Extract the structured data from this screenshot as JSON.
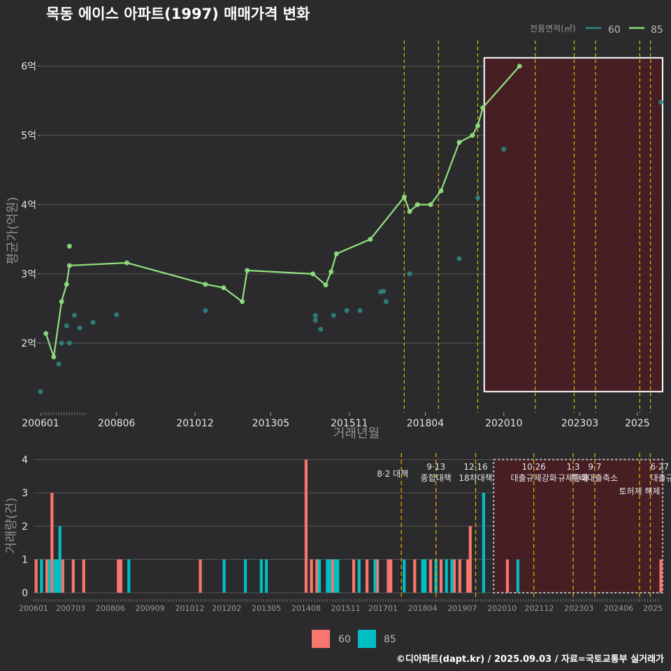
{
  "title": "목동 에이스 아파트(1997) 매매가격 변화",
  "credit": "©디아파트(dapt.kr) / 2025.09.03 / 자료=국토교통부 실거래가",
  "colors": {
    "bg": "#2b2b2d",
    "grid": "#555555",
    "series60": "#2e8a87",
    "series85": "#90e07e",
    "vol60": "#f8766d",
    "vol85": "#00bfc4",
    "policy_line": "#d4c200",
    "policy_line_bottom": "#e0a800",
    "highlight_fill": "#4a1d22",
    "highlight_border": "#ffffff"
  },
  "chart_data": [
    {
      "type": "line",
      "name": "price",
      "ylabel": "평균가(억원)",
      "xlabel": "거래년월",
      "y_ticks": [
        2,
        3,
        4,
        5,
        6
      ],
      "y_tick_labels": [
        "2억",
        "3억",
        "4억",
        "5억",
        "6억"
      ],
      "ylim": [
        1.0,
        6.4
      ],
      "xlim": [
        2006.0,
        2025.85
      ],
      "x_tick_labels": [
        "200601",
        "200806",
        "201012",
        "201305",
        "201511",
        "201804",
        "202010",
        "202303",
        "2025"
      ],
      "x_tick_positions": [
        2006.0,
        2008.42,
        2010.92,
        2013.33,
        2015.83,
        2018.25,
        2020.75,
        2023.17,
        2025.0
      ],
      "legend": {
        "title": "전용면적(㎡)",
        "position": "top-right",
        "entries": [
          "60",
          "85"
        ]
      },
      "policy_lines": [
        2017.58,
        2018.67,
        2019.92,
        2021.75,
        2022.99,
        2023.67,
        2025.08,
        2025.42
      ],
      "highlight_range": [
        2020.75,
        2025.85
      ],
      "highlight_y": [
        1.3,
        6.12
      ],
      "series": [
        {
          "name": "85",
          "line_x": [
            2006.17,
            2006.42,
            2006.67,
            2006.83,
            2006.92,
            2008.75,
            2011.25,
            2011.83,
            2012.42,
            2012.58,
            2014.67,
            2015.08,
            2015.25,
            2015.42,
            2016.5,
            2017.58,
            2017.75,
            2018.0,
            2018.42,
            2018.75,
            2019.33,
            2019.75,
            2019.92,
            2020.08,
            2021.25
          ],
          "line_y": [
            2.14,
            1.8,
            2.6,
            2.85,
            3.12,
            3.16,
            2.85,
            2.8,
            2.6,
            3.05,
            3.0,
            2.84,
            3.03,
            3.29,
            3.5,
            4.11,
            3.9,
            4.0,
            4.0,
            4.2,
            4.9,
            5.0,
            5.14,
            5.4,
            6.0
          ],
          "points_x": [
            2006.17,
            2006.42,
            2006.67,
            2006.83,
            2006.92,
            2006.92,
            2008.75,
            2011.25,
            2011.83,
            2012.42,
            2012.58,
            2014.67,
            2015.08,
            2015.25,
            2015.42,
            2016.5,
            2017.58,
            2017.75,
            2018.0,
            2018.42,
            2018.75,
            2019.33,
            2019.75,
            2019.92,
            2020.08,
            2021.25
          ],
          "points_y": [
            2.14,
            1.8,
            2.6,
            2.85,
            3.12,
            3.4,
            3.16,
            2.85,
            2.8,
            2.6,
            3.05,
            3.0,
            2.84,
            3.03,
            3.29,
            3.5,
            4.11,
            3.9,
            4.0,
            4.0,
            4.2,
            4.9,
            5.0,
            5.14,
            5.4,
            6.0
          ]
        },
        {
          "name": "60",
          "points_x": [
            2006.0,
            2006.58,
            2006.67,
            2006.83,
            2006.92,
            2007.08,
            2007.25,
            2007.67,
            2008.42,
            2011.25,
            2014.75,
            2014.75,
            2014.92,
            2015.33,
            2015.75,
            2016.17,
            2016.83,
            2016.92,
            2017.0,
            2017.75,
            2019.33,
            2019.92,
            2020.75,
            2025.75
          ],
          "points_y": [
            1.3,
            1.7,
            2.0,
            2.25,
            2.0,
            2.4,
            2.22,
            2.3,
            2.41,
            2.47,
            2.4,
            2.33,
            2.2,
            2.4,
            2.47,
            2.47,
            2.74,
            2.75,
            2.6,
            3.0,
            3.22,
            4.1,
            4.8,
            5.48
          ]
        }
      ]
    },
    {
      "type": "bar",
      "name": "volume",
      "ylabel": "거래량(건)",
      "y_ticks": [
        0,
        1,
        2,
        3,
        4
      ],
      "ylim": [
        0,
        4.2
      ],
      "xlim": [
        2006.0,
        2025.85
      ],
      "x_tick_labels": [
        "200601",
        "200703",
        "200806",
        "200909",
        "201012",
        "201202",
        "201305",
        "201408",
        "201511",
        "201701",
        "201804",
        "201907",
        "202010",
        "202112",
        "202303",
        "202406",
        "2025"
      ],
      "x_tick_positions": [
        2006.0,
        2007.17,
        2008.42,
        2009.67,
        2010.92,
        2012.08,
        2013.33,
        2014.58,
        2015.83,
        2017.0,
        2018.25,
        2019.5,
        2020.75,
        2021.92,
        2023.17,
        2024.42,
        2025.5
      ],
      "legend": {
        "position": "bottom",
        "entries": [
          "60",
          "85"
        ]
      },
      "policy_lines": [
        2017.58,
        2018.67,
        2019.92,
        2021.75,
        2022.99,
        2023.67,
        2025.08,
        2025.42
      ],
      "policy_labels": [
        {
          "x": 2017.58,
          "lines": [
            "8·2 대책"
          ],
          "align": "end"
        },
        {
          "x": 2018.67,
          "lines": [
            "9·13",
            "종합대책"
          ],
          "align": "middle"
        },
        {
          "x": 2019.92,
          "lines": [
            "12·16",
            "18차대책"
          ],
          "align": "middle"
        },
        {
          "x": 2021.75,
          "lines": [
            "10·26",
            "대출규제강화"
          ],
          "align": "middle"
        },
        {
          "x": 2022.99,
          "lines": [
            "1·3",
            "규제완화"
          ],
          "align": "middle"
        },
        {
          "x": 2023.67,
          "lines": [
            "9·7",
            "특례대출축소"
          ],
          "align": "middle"
        },
        {
          "x": 2025.08,
          "lines": [
            "토허제 해제"
          ],
          "align": "middle"
        },
        {
          "x": 2025.42,
          "lines": [
            "6·27",
            "대출규"
          ],
          "align": "start"
        }
      ],
      "highlight_range": [
        2020.75,
        2025.85
      ],
      "series": [
        {
          "name": "60",
          "x": [
            2006.08,
            2006.42,
            2006.58,
            2006.92,
            2007.25,
            2007.58,
            2008.67,
            2008.75,
            2011.25,
            2014.58,
            2014.75,
            2014.92,
            2015.42,
            2016.08,
            2016.5,
            2016.83,
            2017.17,
            2017.25,
            2018.0,
            2018.5,
            2018.83,
            2019.25,
            2019.42,
            2019.67,
            2019.75,
            2020.92,
            2025.75
          ],
          "values": [
            1,
            1,
            3,
            1,
            1,
            1,
            1,
            1,
            1,
            4,
            1,
            1,
            1,
            1,
            1,
            1,
            1,
            1,
            1,
            1,
            1,
            1,
            1,
            1,
            2,
            1,
            1
          ]
        },
        {
          "name": "85",
          "x": [
            2006.25,
            2006.5,
            2006.67,
            2006.75,
            2006.83,
            2009.0,
            2012.0,
            2012.67,
            2013.17,
            2013.33,
            2015.0,
            2015.25,
            2015.33,
            2015.5,
            2015.58,
            2016.25,
            2016.75,
            2017.67,
            2018.25,
            2018.33,
            2018.67,
            2019.0,
            2019.17,
            2020.17,
            2021.25
          ],
          "values": [
            1,
            1,
            1,
            1,
            2,
            1,
            1,
            1,
            1,
            1,
            1,
            1,
            1,
            1,
            1,
            1,
            1,
            1,
            1,
            1,
            1,
            1,
            1,
            3,
            1
          ]
        }
      ]
    }
  ]
}
